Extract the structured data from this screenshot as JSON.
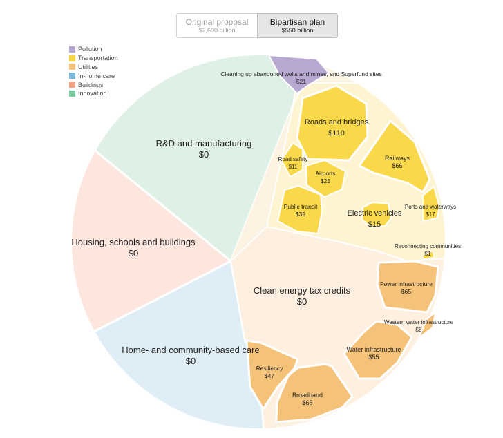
{
  "toggle": {
    "original": {
      "title": "Original proposal",
      "amount": "$2,600 billion"
    },
    "bipartisan": {
      "title": "Bipartisan plan",
      "amount": "$550 billion"
    }
  },
  "legend": [
    {
      "name": "Pollution",
      "color": "#b8a9d3"
    },
    {
      "name": "Transportation",
      "color": "#f9d84a"
    },
    {
      "name": "Utilities",
      "color": "#f5c27a"
    },
    {
      "name": "In-home care",
      "color": "#7bb8d8"
    },
    {
      "name": "Buildings",
      "color": "#f4a284"
    },
    {
      "name": "Innovation",
      "color": "#7fcda3"
    }
  ],
  "chart_data": {
    "type": "voronoi-treemap",
    "title": "Bipartisan plan",
    "total": "$550 billion",
    "units": "billions of dollars",
    "categories": [
      {
        "name": "Innovation",
        "items": [
          {
            "label": "R&D and manufacturing",
            "amount": "$0",
            "value": 0
          }
        ]
      },
      {
        "name": "Buildings",
        "items": [
          {
            "label": "Housing, schools and buildings",
            "amount": "$0",
            "value": 0
          }
        ]
      },
      {
        "name": "In-home care",
        "items": [
          {
            "label": "Home- and community-based care",
            "amount": "$0",
            "value": 0
          }
        ]
      },
      {
        "name": "Pollution",
        "items": [
          {
            "label": "Cleaning up abandoned wells and mines, and Superfund sites",
            "amount": "$21",
            "value": 21
          }
        ]
      },
      {
        "name": "Transportation",
        "items": [
          {
            "label": "Roads and bridges",
            "amount": "$110",
            "value": 110
          },
          {
            "label": "Railways",
            "amount": "$66",
            "value": 66
          },
          {
            "label": "Road safety",
            "amount": "$11",
            "value": 11
          },
          {
            "label": "Airports",
            "amount": "$25",
            "value": 25
          },
          {
            "label": "Public transit",
            "amount": "$39",
            "value": 39
          },
          {
            "label": "Electric vehicles",
            "amount": "$15",
            "value": 15
          },
          {
            "label": "Ports and waterways",
            "amount": "$17",
            "value": 17
          },
          {
            "label": "Reconnecting communities",
            "amount": "$1",
            "value": 1
          }
        ]
      },
      {
        "name": "Utilities",
        "items": [
          {
            "label": "Clean energy tax credits",
            "amount": "$0",
            "value": 0
          },
          {
            "label": "Power infrastructure",
            "amount": "$65",
            "value": 65
          },
          {
            "label": "Western water infrastructure",
            "amount": "$8",
            "value": 8
          },
          {
            "label": "Water infrastructure",
            "amount": "$55",
            "value": 55
          },
          {
            "label": "Broadband",
            "amount": "$65",
            "value": 65
          },
          {
            "label": "Resiliency",
            "amount": "$47",
            "value": 47
          }
        ]
      }
    ]
  }
}
